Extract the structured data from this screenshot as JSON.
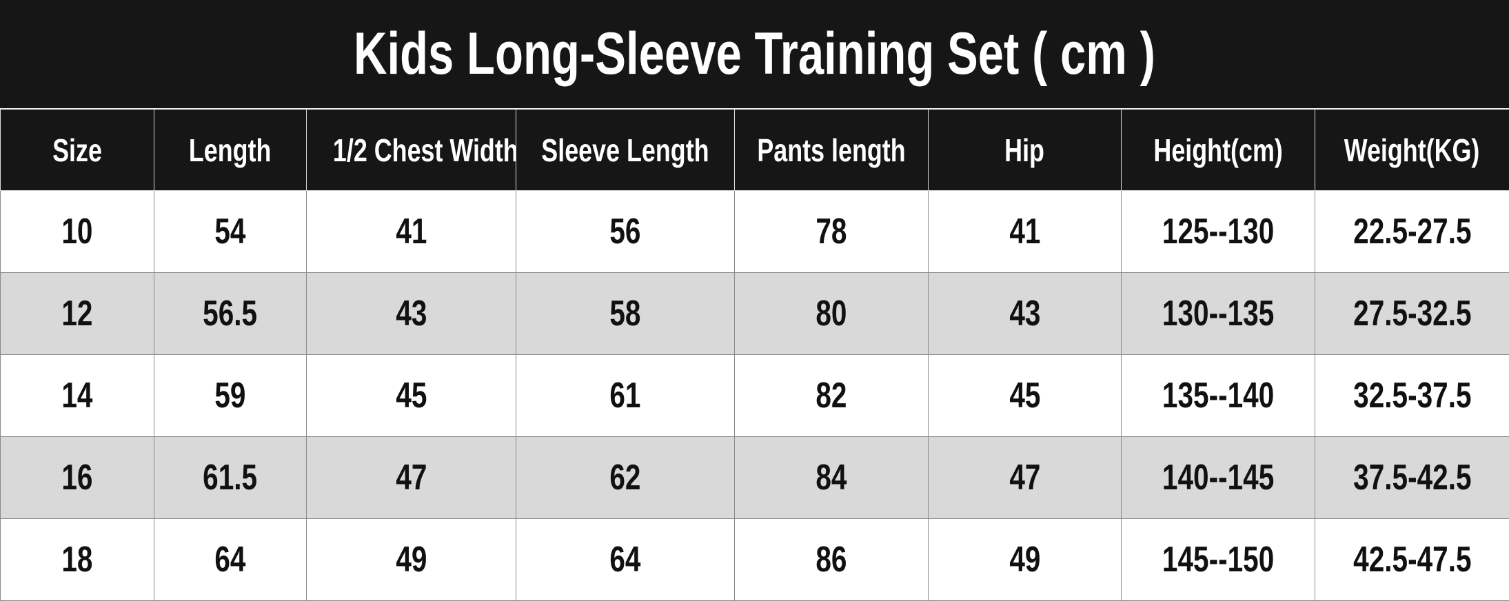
{
  "title": "Kids Long-Sleeve Training Set ( cm )",
  "columns": [
    "Size",
    "Length",
    "1/2 Chest Width",
    "Sleeve Length",
    "Pants length",
    "Hip",
    "Height(cm)",
    "Weight(KG)"
  ],
  "rows": [
    [
      "10",
      "54",
      "41",
      "56",
      "78",
      "41",
      "125--130",
      "22.5-27.5"
    ],
    [
      "12",
      "56.5",
      "43",
      "58",
      "80",
      "43",
      "130--135",
      "27.5-32.5"
    ],
    [
      "14",
      "59",
      "45",
      "61",
      "82",
      "45",
      "135--140",
      "32.5-37.5"
    ],
    [
      "16",
      "61.5",
      "47",
      "62",
      "84",
      "47",
      "140--145",
      "37.5-42.5"
    ],
    [
      "18",
      "64",
      "49",
      "64",
      "86",
      "49",
      "145--150",
      "42.5-47.5"
    ]
  ],
  "colors": {
    "header_bg": "#161616",
    "alt_row_bg": "#d9d9d9"
  }
}
